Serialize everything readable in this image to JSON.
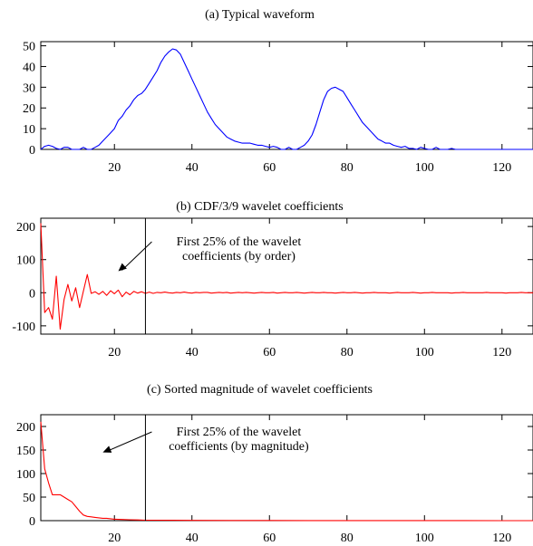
{
  "chart_data": [
    {
      "type": "line",
      "title": "(a) Typical waveform",
      "xlabel": "",
      "ylabel": "",
      "xlim": [
        1,
        128
      ],
      "ylim": [
        0,
        52
      ],
      "xticks": [
        20,
        40,
        60,
        80,
        100,
        120
      ],
      "yticks": [
        0,
        10,
        20,
        30,
        40,
        50
      ],
      "grid": false,
      "color": "#0000ff",
      "series": [
        {
          "x": [
            1,
            2,
            3,
            4,
            5,
            6,
            7,
            8,
            9,
            10,
            11,
            12,
            13,
            14,
            15,
            16,
            17,
            18,
            19,
            20,
            21,
            22,
            23,
            24,
            25,
            26,
            27,
            28,
            29,
            30,
            31,
            32,
            33,
            34,
            35,
            36,
            37,
            38,
            39,
            40,
            41,
            42,
            43,
            44,
            45,
            46,
            47,
            48,
            49,
            50,
            51,
            52,
            53,
            54,
            55,
            56,
            57,
            58,
            59,
            60,
            61,
            62,
            63,
            64,
            65,
            66,
            67,
            68,
            69,
            70,
            71,
            72,
            73,
            74,
            75,
            76,
            77,
            78,
            79,
            80,
            81,
            82,
            83,
            84,
            85,
            86,
            87,
            88,
            89,
            90,
            91,
            92,
            93,
            94,
            95,
            96,
            97,
            98,
            99,
            100,
            101,
            102,
            103,
            104,
            105,
            106,
            107,
            108,
            109,
            110,
            111,
            112,
            113,
            114,
            115,
            116,
            117,
            118,
            119,
            120,
            121,
            122,
            123,
            124,
            125,
            126,
            127,
            128
          ],
          "values": [
            0,
            1.5,
            2,
            1.5,
            0.5,
            0,
            1,
            1,
            0,
            0,
            0,
            1,
            0,
            0,
            1,
            2,
            4,
            6,
            8,
            10,
            14,
            16,
            19,
            21,
            24,
            26,
            27,
            29,
            32,
            35,
            38,
            42,
            45,
            47,
            48.5,
            48,
            46,
            42,
            38,
            34,
            30,
            26,
            22,
            18,
            15,
            12,
            10,
            8,
            6,
            5,
            4,
            3.5,
            3,
            3,
            3,
            2.5,
            2,
            2,
            1.5,
            1,
            1.5,
            1,
            0,
            0,
            1,
            0,
            0,
            1,
            2,
            4,
            7,
            12,
            18,
            24,
            28,
            29.5,
            30,
            29,
            28,
            25,
            22,
            19,
            16,
            13,
            11,
            9,
            7,
            5,
            4,
            3,
            3,
            2,
            1.5,
            1,
            1.5,
            0.5,
            0.5,
            0,
            1,
            0.5,
            0,
            0,
            1,
            0,
            0,
            0,
            0.5,
            0,
            0,
            0,
            0,
            0,
            0,
            0,
            0,
            0,
            0,
            0,
            0,
            0,
            0,
            0,
            0,
            0,
            0,
            0,
            0,
            0
          ]
        }
      ]
    },
    {
      "type": "line",
      "title": "(b) CDF/3/9 wavelet coefficients",
      "xlabel": "",
      "ylabel": "",
      "xlim": [
        1,
        128
      ],
      "ylim": [
        -125,
        225
      ],
      "xticks": [
        20,
        40,
        60,
        80,
        100,
        120
      ],
      "yticks": [
        -100,
        0,
        100,
        200
      ],
      "grid": false,
      "color": "#ff0000",
      "series": [
        {
          "x": [
            1,
            2,
            3,
            4,
            5,
            6,
            7,
            8,
            9,
            10,
            11,
            12,
            13,
            14,
            15,
            16,
            17,
            18,
            19,
            20,
            21,
            22,
            23,
            24,
            25,
            26,
            27,
            28,
            29,
            30,
            31,
            32,
            33,
            34,
            35,
            36,
            37,
            38,
            39,
            40,
            41,
            42,
            43,
            44,
            45,
            46,
            47,
            48,
            49,
            50,
            51,
            52,
            53,
            54,
            55,
            56,
            57,
            58,
            59,
            60,
            61,
            62,
            63,
            64,
            65,
            66,
            67,
            68,
            69,
            70,
            71,
            72,
            73,
            74,
            75,
            76,
            77,
            78,
            79,
            80,
            81,
            82,
            83,
            84,
            85,
            86,
            87,
            88,
            89,
            90,
            91,
            92,
            93,
            94,
            95,
            96,
            97,
            98,
            99,
            100,
            101,
            102,
            103,
            104,
            105,
            106,
            107,
            108,
            109,
            110,
            111,
            112,
            113,
            114,
            115,
            116,
            117,
            118,
            119,
            120,
            121,
            122,
            123,
            124,
            125,
            126,
            127,
            128
          ],
          "values": [
            210,
            -60,
            -45,
            -80,
            50,
            -110,
            -20,
            25,
            -25,
            15,
            -45,
            5,
            55,
            -2,
            3,
            -5,
            4,
            -8,
            6,
            -3,
            8,
            -12,
            2,
            -6,
            4,
            -1,
            3,
            -2,
            2,
            -2,
            1,
            0,
            2,
            0,
            -1,
            1,
            0,
            2,
            0,
            -1,
            1,
            0,
            1,
            1,
            -1,
            0,
            1,
            0,
            1,
            -1,
            0,
            1,
            0,
            1,
            0,
            -1,
            0,
            1,
            0,
            0,
            1,
            -1,
            0,
            1,
            0,
            0,
            1,
            0,
            -1,
            0,
            1,
            0,
            0,
            1,
            0,
            0,
            -1,
            0,
            1,
            0,
            0,
            1,
            0,
            -1,
            0,
            0,
            1,
            0,
            0,
            0,
            -1,
            0,
            1,
            0,
            0,
            0,
            1,
            0,
            -1,
            0,
            0,
            1,
            0,
            0,
            0,
            0,
            -1,
            0,
            0,
            1,
            0,
            0,
            0,
            0,
            0,
            1,
            0,
            0,
            0,
            0,
            -1,
            0,
            0,
            0,
            1,
            0,
            0,
            0
          ]
        }
      ],
      "annotation": {
        "lines": [
          "First 25% of the wavelet",
          "coefficients (by order)"
        ],
        "arrow_to": [
          21,
          65
        ],
        "vline_x": 28
      }
    },
    {
      "type": "line",
      "title": "(c) Sorted magnitude of wavelet coefficients",
      "xlabel": "",
      "ylabel": "",
      "xlim": [
        1,
        128
      ],
      "ylim": [
        0,
        225
      ],
      "xticks": [
        20,
        40,
        60,
        80,
        100,
        120
      ],
      "yticks": [
        0,
        50,
        100,
        150,
        200
      ],
      "grid": false,
      "color": "#ff0000",
      "series": [
        {
          "x": [
            1,
            2,
            3,
            4,
            5,
            6,
            7,
            8,
            9,
            10,
            11,
            12,
            13,
            14,
            15,
            16,
            17,
            18,
            19,
            20,
            22,
            24,
            26,
            28,
            30,
            35,
            40,
            50,
            60,
            70,
            80,
            90,
            100,
            110,
            120,
            128
          ],
          "values": [
            210,
            110,
            80,
            55,
            55,
            55,
            50,
            45,
            40,
            30,
            20,
            12,
            9,
            8,
            7,
            6,
            5,
            5,
            4,
            3,
            2.5,
            2,
            1.5,
            1,
            1,
            0.8,
            0.6,
            0.4,
            0.3,
            0.2,
            0.2,
            0.1,
            0.1,
            0.1,
            0,
            0
          ]
        }
      ],
      "annotation": {
        "lines": [
          "First 25% of the wavelet",
          "coefficients (by magnitude)"
        ],
        "arrow_to": [
          17,
          145
        ],
        "vline_x": 28
      }
    }
  ]
}
